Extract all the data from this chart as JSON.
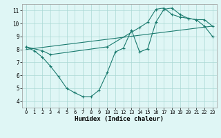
{
  "xlabel": "Humidex (Indice chaleur)",
  "bg_color": "#dff6f5",
  "line_color": "#1a7a6e",
  "grid_color": "#aad8d4",
  "xlim": [
    -0.5,
    23.5
  ],
  "ylim": [
    3.5,
    11.5
  ],
  "xticks": [
    0,
    1,
    2,
    3,
    4,
    5,
    6,
    7,
    8,
    9,
    10,
    11,
    12,
    13,
    14,
    15,
    16,
    17,
    18,
    19,
    20,
    21,
    22,
    23
  ],
  "yticks": [
    4,
    5,
    6,
    7,
    8,
    9,
    10,
    11
  ],
  "line1_x": [
    0,
    1,
    2,
    3,
    4,
    5,
    6,
    7,
    8,
    9,
    10,
    11,
    12,
    13,
    14,
    15,
    16,
    17,
    18,
    19,
    20,
    21,
    22,
    23
  ],
  "line1_y": [
    8.2,
    7.9,
    7.4,
    6.7,
    5.9,
    5.0,
    4.65,
    4.35,
    4.35,
    4.85,
    6.2,
    7.8,
    8.1,
    9.5,
    7.8,
    8.05,
    10.1,
    11.1,
    11.2,
    10.7,
    10.4,
    10.3,
    9.8,
    9.0
  ],
  "line2_x": [
    0,
    2,
    3,
    10,
    14,
    15,
    16,
    17,
    18,
    19,
    20,
    21,
    22,
    23
  ],
  "line2_y": [
    8.2,
    7.9,
    7.6,
    8.2,
    9.7,
    10.1,
    11.1,
    11.2,
    10.7,
    10.5,
    10.4,
    10.3,
    10.3,
    9.8
  ],
  "line3_x": [
    0,
    23
  ],
  "line3_y": [
    8.0,
    9.8
  ]
}
